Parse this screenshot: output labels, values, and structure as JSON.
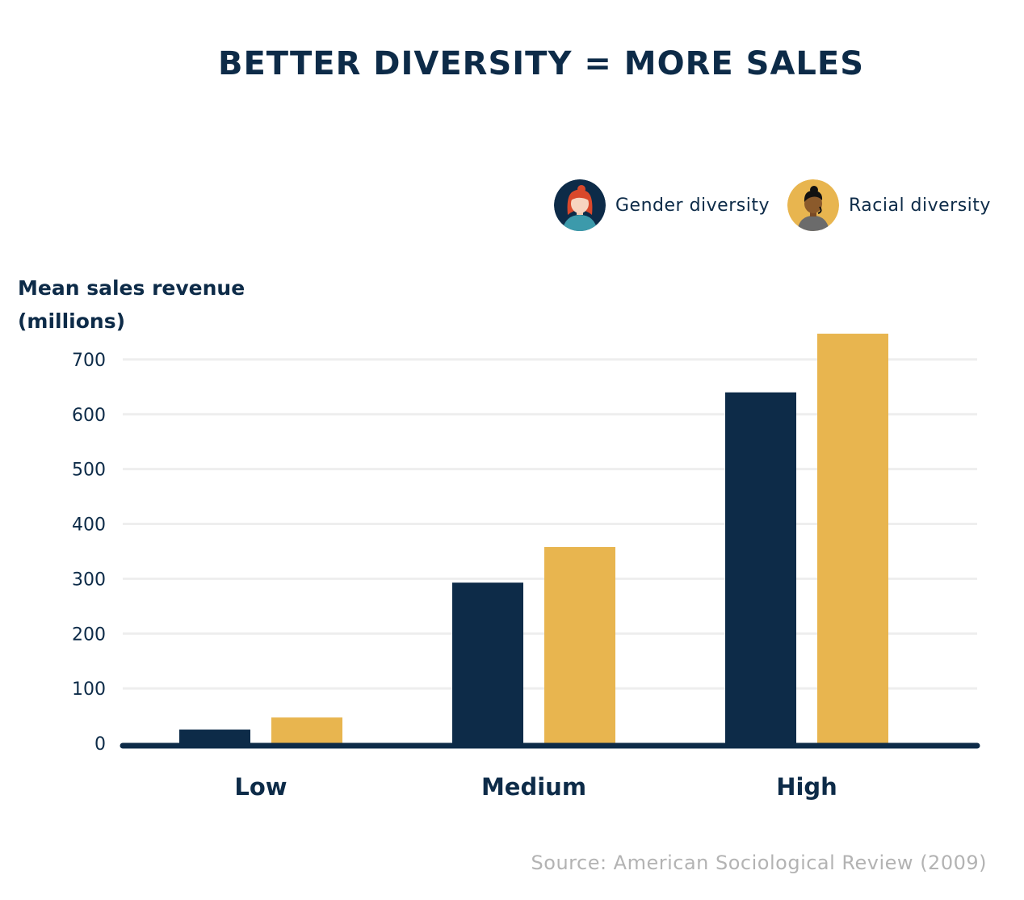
{
  "chart_data": {
    "type": "bar",
    "title": "BETTER DIVERSITY = MORE SALES",
    "ylabel": "Mean sales revenue\n(millions)",
    "xlabel": "",
    "categories": [
      "Low",
      "Medium",
      "High"
    ],
    "series": [
      {
        "name": "Gender diversity",
        "color": "#0d2b48",
        "values": [
          25,
          293,
          640
        ]
      },
      {
        "name": "Racial diversity",
        "color": "#e8b54f",
        "values": [
          47,
          358,
          747
        ]
      }
    ],
    "yticks": [
      "0",
      "100",
      "200",
      "300",
      "400",
      "500",
      "600",
      "700"
    ],
    "ytick_values": [
      0,
      100,
      200,
      300,
      400,
      500,
      600,
      700
    ],
    "ylim": [
      0,
      750
    ],
    "grid": true,
    "legend_position": "top-right",
    "source": "Source: American Sociological Review (2009)"
  },
  "legend": {
    "gender_icon": "woman-avatar-icon",
    "racial_icon": "person-avatar-icon"
  },
  "colors": {
    "navy": "#0d2b48",
    "gold": "#e8b54f",
    "grid": "#eeeeee",
    "source_text": "#b3b3b3"
  }
}
